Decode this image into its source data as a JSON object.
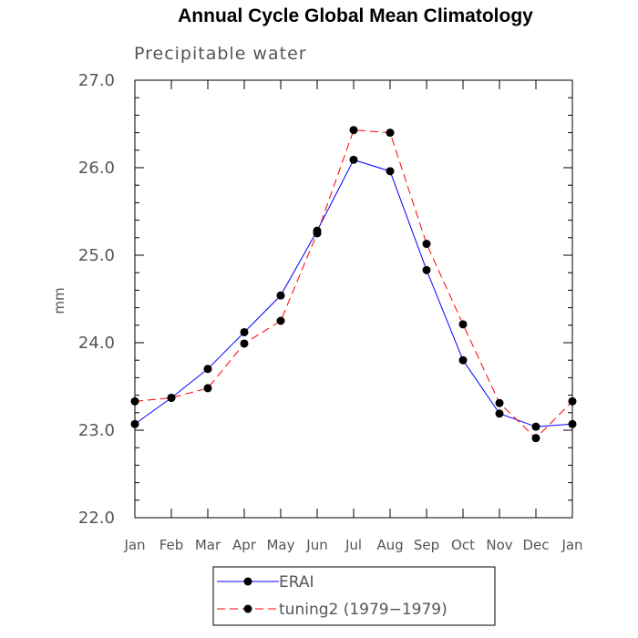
{
  "chart_data": {
    "type": "line",
    "title": "Annual Cycle Global Mean Climatology",
    "subtitle": "Precipitable water",
    "ylabel": "mm",
    "xlabel": "",
    "categories": [
      "Jan",
      "Feb",
      "Mar",
      "Apr",
      "May",
      "Jun",
      "Jul",
      "Aug",
      "Sep",
      "Oct",
      "Nov",
      "Dec",
      "Jan"
    ],
    "ylim": [
      22.0,
      27.0
    ],
    "yticks": [
      "22.0",
      "23.0",
      "24.0",
      "25.0",
      "26.0",
      "27.0"
    ],
    "series": [
      {
        "name": "ERAI",
        "color": "#0000ff",
        "dash": "solid",
        "values": [
          23.07,
          23.37,
          23.7,
          24.12,
          24.54,
          25.28,
          26.09,
          25.96,
          24.83,
          23.8,
          23.19,
          23.04,
          23.07
        ]
      },
      {
        "name": "tuning2 (1979-1979)",
        "color": "#ff0000",
        "dash": "dashed",
        "values": [
          23.33,
          23.37,
          23.48,
          23.99,
          24.25,
          25.25,
          26.43,
          26.4,
          25.13,
          24.21,
          23.31,
          22.91,
          23.33
        ]
      }
    ],
    "legend": {
      "position": "bottom-left",
      "entries": [
        "ERAI",
        "tuning2 (1979−1979)"
      ]
    },
    "grid": false
  }
}
